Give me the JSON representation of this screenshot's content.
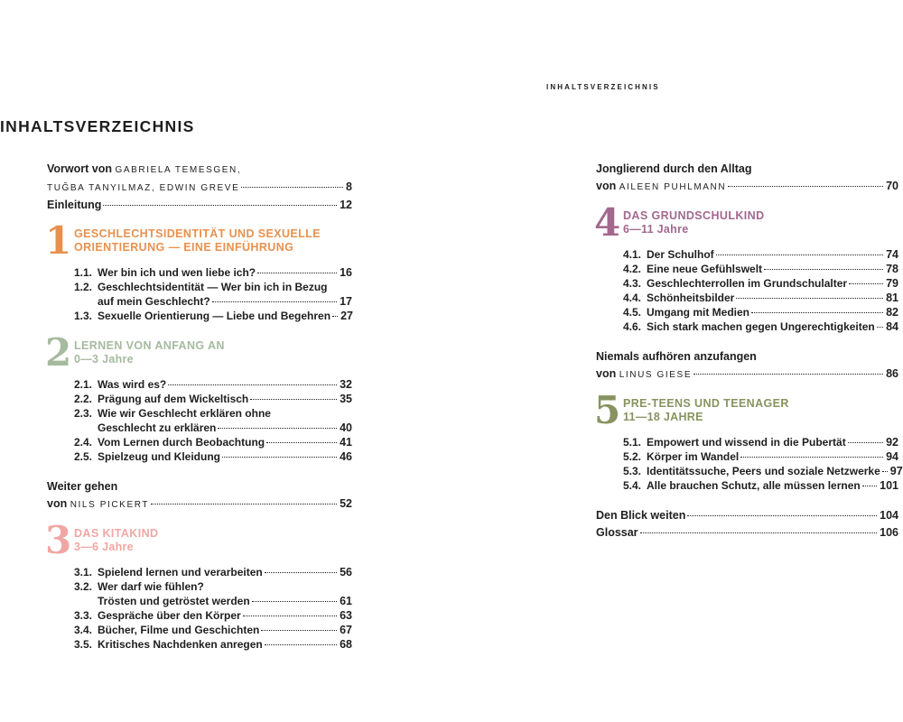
{
  "running_header": "INHALTSVERZEICHNIS",
  "page_title": "INHALTSVERZEICHNIS",
  "colors": {
    "text": "#1e1e1e",
    "chapter_1_orange": "#e8914e",
    "chapter_2_sage": "#a6ba9f",
    "chapter_3_pink": "#f0a7a4",
    "chapter_4_mauve": "#a2688e",
    "chapter_5_olive": "#879360"
  },
  "columns": {
    "left": [
      {
        "type": "essay",
        "lines": [
          {
            "text": "Vorwort von ",
            "caps": "GABRIELA TEMESGEN,"
          },
          {
            "caps": "TUĞBA TANYILMAZ, EDWIN GREVE",
            "page": "8"
          },
          {
            "text": "Einleitung",
            "page": "12"
          }
        ]
      },
      {
        "type": "chapter",
        "num": "1",
        "color": "#e8914e",
        "title_lines": [
          "GESCHLECHTSIDENTITÄT UND SEXUELLE",
          "ORIENTIERUNG — EINE EINFÜHRUNG"
        ],
        "items": [
          {
            "num": "1.1.",
            "text": "Wer bin ich und wen liebe ich?",
            "page": "16"
          },
          {
            "num": "1.2.",
            "text": "Geschlechtsidentität — Wer bin ich in Bezug",
            "wrap": "auf mein Geschlecht?",
            "page": "17"
          },
          {
            "num": "1.3.",
            "text": "Sexuelle Orientierung — Liebe und Begehren",
            "page": "27"
          }
        ]
      },
      {
        "type": "chapter",
        "num": "2",
        "color": "#a6ba9f",
        "title_lines": [
          "LERNEN VON ANFANG AN"
        ],
        "subtitle": "0—3 Jahre",
        "items": [
          {
            "num": "2.1.",
            "text": "Was wird es?",
            "page": "32"
          },
          {
            "num": "2.2.",
            "text": "Prägung auf dem Wickeltisch",
            "page": "35"
          },
          {
            "num": "2.3.",
            "text": "Wie wir Geschlecht erklären ohne",
            "wrap": "Geschlecht zu erklären",
            "page": "40"
          },
          {
            "num": "2.4.",
            "text": "Vom Lernen durch Beobachtung",
            "page": "41"
          },
          {
            "num": "2.5.",
            "text": "Spielzeug und Kleidung",
            "page": "46"
          }
        ]
      },
      {
        "type": "essay",
        "lines": [
          {
            "text": "Weiter gehen"
          },
          {
            "text": "von ",
            "caps": "NILS PICKERT",
            "page": "52"
          }
        ]
      },
      {
        "type": "chapter",
        "num": "3",
        "color": "#f0a7a4",
        "title_lines": [
          "DAS KITAKIND"
        ],
        "subtitle": "3—6 Jahre",
        "items": [
          {
            "num": "3.1.",
            "text": "Spielend lernen und verarbeiten",
            "page": "56"
          },
          {
            "num": "3.2.",
            "text": "Wer darf wie fühlen?",
            "wrap": "Trösten und getröstet werden",
            "page": "61"
          },
          {
            "num": "3.3.",
            "text": "Gespräche über den Körper",
            "page": "63"
          },
          {
            "num": "3.4.",
            "text": "Bücher, Filme und Geschichten",
            "page": "67"
          },
          {
            "num": "3.5.",
            "text": "Kritisches Nachdenken anregen",
            "page": "68"
          }
        ]
      }
    ],
    "right": [
      {
        "type": "essay",
        "lines": [
          {
            "text": "Jonglierend durch den Alltag"
          },
          {
            "text": "von ",
            "caps": "AILEEN PUHLMANN",
            "page": "70"
          }
        ]
      },
      {
        "type": "chapter",
        "num": "4",
        "color": "#a2688e",
        "title_lines": [
          "DAS GRUNDSCHULKIND"
        ],
        "subtitle": "6—11 Jahre",
        "items": [
          {
            "num": "4.1.",
            "text": "Der Schulhof",
            "page": "74"
          },
          {
            "num": "4.2.",
            "text": "Eine neue Gefühlswelt",
            "page": "78"
          },
          {
            "num": "4.3.",
            "text": "Geschlechterrollen im Grundschulalter",
            "page": "79"
          },
          {
            "num": "4.4.",
            "text": "Schönheitsbilder",
            "page": "81"
          },
          {
            "num": "4.5.",
            "text": "Umgang mit Medien",
            "page": "82"
          },
          {
            "num": "4.6.",
            "text": "Sich stark machen gegen Ungerechtigkeiten",
            "page": "84"
          }
        ]
      },
      {
        "type": "essay",
        "lines": [
          {
            "text": "Niemals aufhören anzufangen"
          },
          {
            "text": "von ",
            "caps": "LINUS GIESE",
            "page": "86"
          }
        ]
      },
      {
        "type": "chapter",
        "num": "5",
        "color": "#879360",
        "title_lines": [
          "PRE-TEENS UND TEENAGER"
        ],
        "subtitle": "11—18 JAHRE",
        "items": [
          {
            "num": "5.1.",
            "text": "Empowert und wissend in die Pubertät",
            "page": "92"
          },
          {
            "num": "5.2.",
            "text": "Körper im Wandel",
            "page": "94"
          },
          {
            "num": "5.3.",
            "text": "Identitätssuche, Peers und soziale Netzwerke",
            "page": "97"
          },
          {
            "num": "5.4.",
            "text": "Alle brauchen Schutz, alle müssen lernen",
            "page": "101"
          }
        ]
      },
      {
        "type": "essay",
        "lines": [
          {
            "text": "Den Blick weiten",
            "page": "104"
          },
          {
            "text": "Glossar",
            "page": "106"
          }
        ]
      }
    ]
  }
}
